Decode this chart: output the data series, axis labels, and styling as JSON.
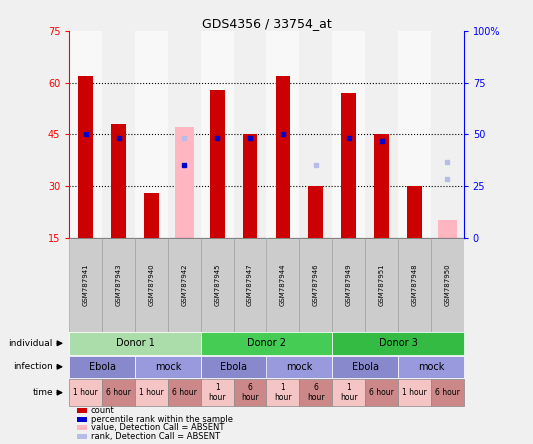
{
  "title": "GDS4356 / 33754_at",
  "samples": [
    "GSM787941",
    "GSM787943",
    "GSM787940",
    "GSM787942",
    "GSM787945",
    "GSM787947",
    "GSM787944",
    "GSM787946",
    "GSM787949",
    "GSM787951",
    "GSM787948",
    "GSM787950"
  ],
  "count_values": [
    62,
    48,
    28,
    null,
    58,
    45,
    62,
    30,
    57,
    45,
    30,
    null
  ],
  "rank_values": [
    45,
    44,
    null,
    null,
    44,
    44,
    45,
    null,
    44,
    43,
    null,
    null
  ],
  "absent_value_values": [
    null,
    null,
    null,
    47,
    null,
    null,
    null,
    null,
    null,
    null,
    null,
    20
  ],
  "absent_rank_values": [
    null,
    null,
    null,
    44,
    null,
    null,
    null,
    null,
    null,
    null,
    null,
    32
  ],
  "absent_count_marker": [
    null,
    null,
    null,
    36,
    null,
    null,
    null,
    null,
    null,
    null,
    null,
    null
  ],
  "absent_rank_marker": [
    null,
    null,
    null,
    null,
    null,
    null,
    null,
    36,
    null,
    null,
    null,
    37
  ],
  "ylim_left": [
    15,
    75
  ],
  "ylim_right": [
    0,
    100
  ],
  "yticks_left": [
    15,
    30,
    45,
    60,
    75
  ],
  "yticks_right": [
    0,
    25,
    50,
    75,
    100
  ],
  "ytick_labels_left": [
    "15",
    "30",
    "45",
    "60",
    "75"
  ],
  "ytick_labels_right": [
    "0",
    "25",
    "50",
    "75",
    "100%"
  ],
  "bar_color": "#cc0000",
  "rank_color": "#0000cc",
  "absent_bar_color": "#ffb6c1",
  "absent_rank_color": "#b8bce8",
  "donors": [
    {
      "label": "Donor 1",
      "start": 0,
      "end": 4,
      "color": "#aaddaa"
    },
    {
      "label": "Donor 2",
      "start": 4,
      "end": 8,
      "color": "#44cc55"
    },
    {
      "label": "Donor 3",
      "start": 8,
      "end": 12,
      "color": "#33bb44"
    }
  ],
  "infections": [
    {
      "label": "Ebola",
      "start": 0,
      "end": 2,
      "color": "#8888cc"
    },
    {
      "label": "mock",
      "start": 2,
      "end": 4,
      "color": "#9999dd"
    },
    {
      "label": "Ebola",
      "start": 4,
      "end": 6,
      "color": "#8888cc"
    },
    {
      "label": "mock",
      "start": 6,
      "end": 8,
      "color": "#9999dd"
    },
    {
      "label": "Ebola",
      "start": 8,
      "end": 10,
      "color": "#8888cc"
    },
    {
      "label": "mock",
      "start": 10,
      "end": 12,
      "color": "#9999dd"
    }
  ],
  "times": [
    {
      "label": "1 hour",
      "start": 0,
      "end": 1,
      "color": "#f5c5c5"
    },
    {
      "label": "6 hour",
      "start": 1,
      "end": 2,
      "color": "#cc8888"
    },
    {
      "label": "1 hour",
      "start": 2,
      "end": 3,
      "color": "#f5c5c5"
    },
    {
      "label": "6 hour",
      "start": 3,
      "end": 4,
      "color": "#cc8888"
    },
    {
      "label": "1\nhour",
      "start": 4,
      "end": 5,
      "color": "#f5c5c5"
    },
    {
      "label": "6\nhour",
      "start": 5,
      "end": 6,
      "color": "#cc8888"
    },
    {
      "label": "1\nhour",
      "start": 6,
      "end": 7,
      "color": "#f5c5c5"
    },
    {
      "label": "6\nhour",
      "start": 7,
      "end": 8,
      "color": "#cc8888"
    },
    {
      "label": "1\nhour",
      "start": 8,
      "end": 9,
      "color": "#f5c5c5"
    },
    {
      "label": "6 hour",
      "start": 9,
      "end": 10,
      "color": "#cc8888"
    },
    {
      "label": "1 hour",
      "start": 10,
      "end": 11,
      "color": "#f5c5c5"
    },
    {
      "label": "6 hour",
      "start": 11,
      "end": 12,
      "color": "#cc8888"
    }
  ],
  "legend_items": [
    {
      "color": "#cc0000",
      "label": "count"
    },
    {
      "color": "#0000cc",
      "label": "percentile rank within the sample"
    },
    {
      "color": "#ffb6c1",
      "label": "value, Detection Call = ABSENT"
    },
    {
      "color": "#b8bce8",
      "label": "rank, Detection Call = ABSENT"
    }
  ],
  "bg_color": "#f0f0f0",
  "plot_bg": "#ffffff",
  "label_bg": "#cccccc",
  "dotted_lines": [
    30,
    45,
    60
  ],
  "bar_width": 0.45
}
